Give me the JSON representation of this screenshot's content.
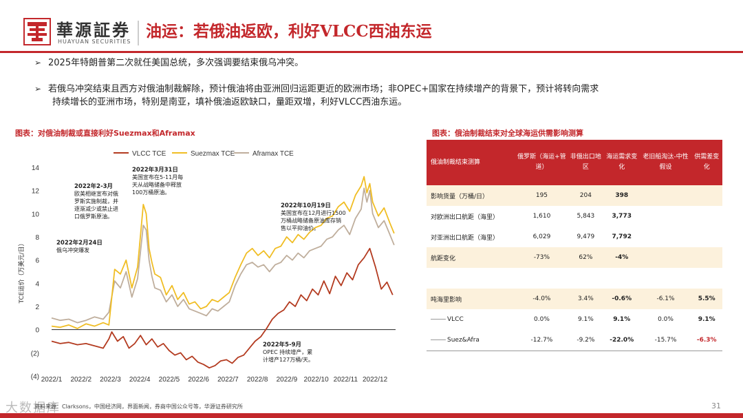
{
  "header": {
    "brand_cn": "華源証券",
    "brand_en": "HUAYUAN SECURITIES",
    "title": "油运：若俄油返欧，利好VLCC西油东运"
  },
  "bullets": [
    "2025年特朗普第二次就任美国总统，多次强调要结束俄乌冲突。",
    "若俄乌冲突结束且西方对俄油制裁解除，预计俄油将由亚洲回归运距更近的欧洲市场；非OPEC+国家在持续增产的背景下，预计将转向需求",
    "持续增长的亚洲市场，特别是南亚，填补俄油返欧缺口，量距双增，利好VLCC西油东运。"
  ],
  "chart_title": "图表：对俄油制裁或直接利好Suezmax和Aframax",
  "table_title": "图表：俄油制裁结束对全球海运供需影响测算",
  "chart_data": {
    "type": "line",
    "ylabel": "TCE运价（万美元/日）",
    "ylim": [
      -4,
      14
    ],
    "yticks": [
      {
        "v": 14,
        "label": "14"
      },
      {
        "v": 12,
        "label": "12"
      },
      {
        "v": 10,
        "label": "10"
      },
      {
        "v": 8,
        "label": "8"
      },
      {
        "v": 6,
        "label": "6"
      },
      {
        "v": 4,
        "label": "4"
      },
      {
        "v": 2,
        "label": "2"
      },
      {
        "v": 0,
        "label": "0"
      },
      {
        "v": -2,
        "label": "(2)"
      },
      {
        "v": -4,
        "label": "(4)"
      }
    ],
    "xlim": [
      0,
      12
    ],
    "xticks": [
      "2022/1",
      "2022/2",
      "2022/3",
      "2022/4",
      "2022/5",
      "2022/6",
      "2022/7",
      "2022/8",
      "2022/9",
      "2022/10",
      "2022/11",
      "2022/12"
    ],
    "series": [
      {
        "name": "VLCC TCE",
        "color": "#b33a1f",
        "x": [
          0,
          0.3,
          0.6,
          0.9,
          1.2,
          1.5,
          1.8,
          2.0,
          2.1,
          2.3,
          2.5,
          2.7,
          2.9,
          3.1,
          3.3,
          3.5,
          3.7,
          3.9,
          4.1,
          4.3,
          4.5,
          4.7,
          4.9,
          5.1,
          5.3,
          5.5,
          5.7,
          5.9,
          6.1,
          6.3,
          6.5,
          6.7,
          6.9,
          7.1,
          7.3,
          7.5,
          7.7,
          7.9,
          8.1,
          8.3,
          8.5,
          8.7,
          8.9,
          9.1,
          9.3,
          9.5,
          9.7,
          9.9,
          10.1,
          10.3,
          10.5,
          10.7,
          10.9,
          11.1,
          11.3,
          11.5,
          11.7,
          11.9
        ],
        "y": [
          -1.0,
          -1.2,
          -1.1,
          -1.3,
          -1.2,
          -1.4,
          -1.6,
          -0.8,
          -0.2,
          -1.0,
          -0.6,
          -1.6,
          -1.2,
          -0.5,
          -1.3,
          -0.8,
          -1.5,
          -1.2,
          -1.8,
          -2.2,
          -2.0,
          -2.6,
          -2.3,
          -2.8,
          -3.0,
          -3.3,
          -3.1,
          -2.7,
          -2.6,
          -2.9,
          -2.4,
          -2.2,
          -1.6,
          -1.0,
          -0.6,
          0.1,
          0.9,
          1.4,
          1.7,
          2.4,
          2.0,
          3.0,
          2.5,
          3.5,
          3.0,
          4.2,
          3.1,
          4.6,
          3.8,
          4.9,
          4.3,
          5.6,
          6.2,
          7.0,
          5.4,
          3.5,
          4.1,
          3.0
        ]
      },
      {
        "name": "Suezmax TCE",
        "color": "#f0bd23",
        "x": [
          0,
          0.3,
          0.6,
          0.9,
          1.2,
          1.5,
          1.8,
          2.0,
          2.2,
          2.4,
          2.6,
          2.8,
          3.0,
          3.2,
          3.3,
          3.4,
          3.5,
          3.6,
          3.8,
          4.0,
          4.2,
          4.4,
          4.6,
          4.8,
          5.0,
          5.2,
          5.4,
          5.6,
          5.8,
          6.0,
          6.2,
          6.4,
          6.6,
          6.8,
          7.0,
          7.2,
          7.4,
          7.6,
          7.8,
          8.0,
          8.2,
          8.4,
          8.6,
          8.8,
          9.0,
          9.2,
          9.4,
          9.6,
          9.8,
          10.0,
          10.2,
          10.4,
          10.6,
          10.8,
          10.9,
          11.0,
          11.1,
          11.2,
          11.4,
          11.6,
          11.8,
          11.95
        ],
        "y": [
          0.3,
          0.2,
          0.4,
          0.1,
          0.5,
          0.3,
          0.6,
          0.4,
          5.2,
          4.8,
          6.0,
          3.6,
          5.4,
          10.8,
          10.0,
          7.0,
          5.8,
          4.8,
          4.5,
          3.0,
          3.8,
          2.6,
          3.2,
          2.2,
          2.4,
          1.8,
          2.0,
          2.6,
          2.4,
          2.8,
          3.2,
          4.5,
          5.6,
          6.6,
          7.0,
          6.4,
          6.8,
          6.2,
          7.0,
          7.2,
          8.0,
          7.5,
          8.2,
          7.8,
          8.4,
          8.8,
          9.0,
          9.6,
          9.8,
          10.6,
          11.0,
          10.2,
          11.6,
          12.4,
          13.2,
          11.8,
          12.6,
          11.0,
          9.8,
          10.5,
          9.2,
          8.3
        ]
      },
      {
        "name": "Aframax TCE",
        "color": "#bfae9c",
        "x": [
          0,
          0.3,
          0.6,
          0.9,
          1.2,
          1.5,
          1.8,
          2.0,
          2.2,
          2.4,
          2.6,
          2.8,
          3.0,
          3.2,
          3.3,
          3.4,
          3.5,
          3.6,
          3.8,
          4.0,
          4.2,
          4.4,
          4.6,
          4.8,
          5.0,
          5.2,
          5.4,
          5.6,
          5.8,
          6.0,
          6.2,
          6.4,
          6.6,
          6.8,
          7.0,
          7.2,
          7.4,
          7.6,
          7.8,
          8.0,
          8.2,
          8.4,
          8.6,
          8.8,
          9.0,
          9.2,
          9.4,
          9.6,
          9.8,
          10.0,
          10.2,
          10.4,
          10.6,
          10.8,
          10.9,
          11.0,
          11.1,
          11.2,
          11.4,
          11.6,
          11.8,
          11.95
        ],
        "y": [
          1.0,
          0.8,
          0.9,
          0.6,
          0.8,
          1.1,
          0.9,
          1.5,
          4.2,
          3.6,
          5.0,
          2.8,
          4.4,
          9.0,
          8.6,
          6.0,
          4.6,
          3.6,
          3.4,
          2.4,
          3.0,
          2.0,
          2.6,
          1.8,
          1.6,
          1.4,
          1.2,
          1.8,
          1.6,
          2.0,
          2.4,
          3.8,
          4.8,
          5.6,
          5.8,
          5.4,
          5.6,
          5.0,
          5.6,
          5.8,
          6.4,
          6.0,
          6.6,
          6.2,
          6.8,
          7.0,
          7.2,
          7.8,
          8.0,
          8.6,
          9.0,
          8.2,
          9.6,
          10.4,
          12.2,
          11.0,
          12.0,
          10.0,
          8.8,
          9.4,
          8.2,
          7.3
        ]
      }
    ],
    "annotations": [
      {
        "lines": [
          "2022年3月31日",
          "美国宣布在5-11月每",
          "天从战略储备中释放",
          "100万桶原油。"
        ]
      },
      {
        "lines": [
          "2022年2-3月",
          "欧美相继宣布对俄",
          "罗斯实施制裁，并",
          "逐渐减少或禁止进",
          "口俄罗斯原油。"
        ]
      },
      {
        "lines": [
          "2022年2月24日",
          "俄乌冲突爆发"
        ]
      },
      {
        "lines": [
          "2022年10月19日",
          "美国宣布在12月进行1500",
          "万桶战略储备原油库存销",
          "售以平抑油价。"
        ]
      },
      {
        "lines": [
          "2022年5-9月",
          "OPEC 持续增产，累",
          "计增产127万桶/天。"
        ]
      }
    ]
  },
  "table": {
    "headers": [
      "俄油制裁结束测算",
      "俄罗斯（海运+管道）",
      "非俄出口地区",
      "海运需求变化",
      "老旧船淘汰-中性假设",
      "供需差变化"
    ],
    "rows": [
      {
        "cells": [
          "影响货量（万桶/日）",
          "195",
          "204",
          "398",
          "",
          ""
        ],
        "shade": true
      },
      {
        "cells": [
          "对欧洲出口航距（海里）",
          "1,610",
          "5,843",
          "3,773",
          "",
          ""
        ],
        "shade": false
      },
      {
        "cells": [
          "对亚洲出口航距（海里）",
          "6,029",
          "9,479",
          "7,792",
          "",
          ""
        ],
        "shade": false
      },
      {
        "cells": [
          "航距变化",
          "-73%",
          "62%",
          "-4%",
          "",
          ""
        ],
        "shade": true
      },
      {
        "cells": [
          "",
          "",
          "",
          "",
          "",
          ""
        ],
        "shade": false,
        "blank": true
      },
      {
        "cells": [
          "吨海里影响",
          "-4.0%",
          "3.4%",
          "-0.6%",
          "-6.1%",
          "5.5%"
        ],
        "shade": true
      },
      {
        "cells": [
          "VLCC",
          "0.0%",
          "9.1%",
          "9.1%",
          "0.0%",
          "9.1%"
        ],
        "shade": false,
        "swatch": true
      },
      {
        "cells": [
          "Suez&Afra",
          "-12.7%",
          "-9.2%",
          "-22.0%",
          "-15.7%",
          "-6.3%"
        ],
        "shade": false,
        "swatch": true
      }
    ]
  },
  "source": "资料来源：Clarksons，中国经济网，界面新闻，券商中国公众号等，华源证券研究所",
  "watermark": "大数据库",
  "page_number": "31",
  "colors": {
    "accent": "#c3272b",
    "table_shade": "#fcf1dc"
  }
}
